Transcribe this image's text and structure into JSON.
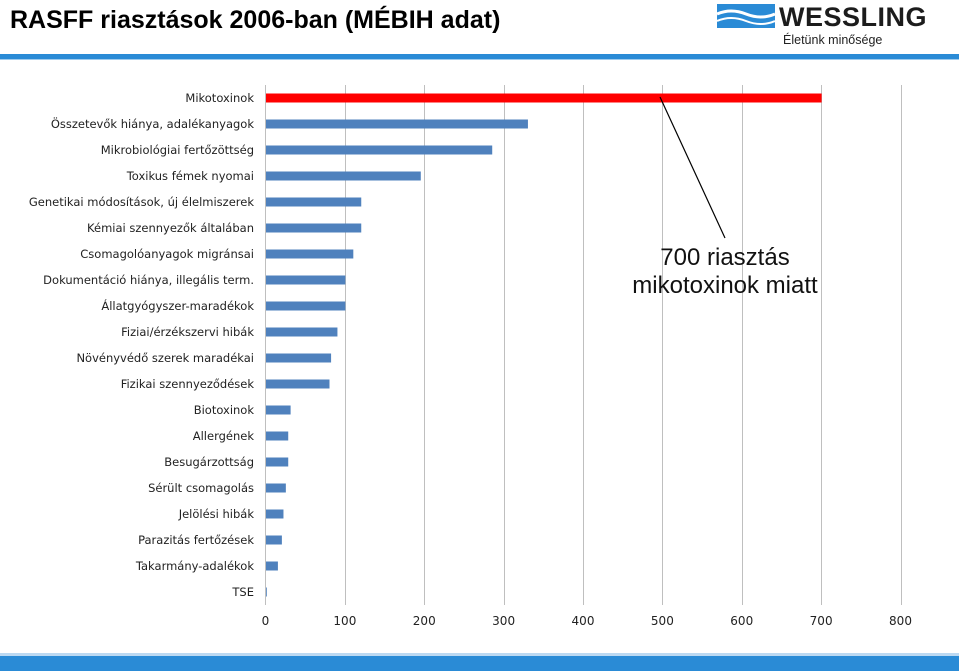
{
  "header": {
    "title": "RASFF riasztások 2006-ban (MÉBIH adat)"
  },
  "logo": {
    "name": "WESSLING",
    "tagline": "Életünk minősége",
    "icon": "wave-logo-icon"
  },
  "colors": {
    "bar": "#4f81bd",
    "highlight": "#ff0000",
    "band": "#2a8bd6",
    "grid": "#bfbfbf"
  },
  "annotation": {
    "line1": "700 riasztás",
    "line2": "mikotoxinok miatt"
  },
  "chart_data": {
    "type": "bar",
    "orientation": "horizontal",
    "categories": [
      "Mikotoxinok",
      "Összetevők hiánya, adalékanyagok",
      "Mikrobiológiai fertőzöttség",
      "Toxikus fémek nyomai",
      "Genetikai módosítások, új élelmiszerek",
      "Kémiai szennyezők általában",
      "Csomagolóanyagok migránsai",
      "Dokumentáció hiánya, illegális term.",
      "Állatgyógyszer-maradékok",
      "Fiziai/érzékszervi hibák",
      "Növényvédő szerek maradékai",
      "Fizikai szennyeződések",
      "Biotoxinok",
      "Allergének",
      "Besugárzottság",
      "Sérült csomagolás",
      "Jelölési hibák",
      "Parazitás fertőzések",
      "Takarmány-adalékok",
      "TSE"
    ],
    "values": [
      700,
      330,
      285,
      195,
      120,
      120,
      110,
      100,
      100,
      90,
      82,
      80,
      31,
      28,
      28,
      25,
      22,
      20,
      15,
      1
    ],
    "highlight_index": 0,
    "xlim": [
      0,
      800
    ],
    "xticks": [
      0,
      100,
      200,
      300,
      400,
      500,
      600,
      700,
      800
    ],
    "grid": true,
    "legend": "none"
  }
}
